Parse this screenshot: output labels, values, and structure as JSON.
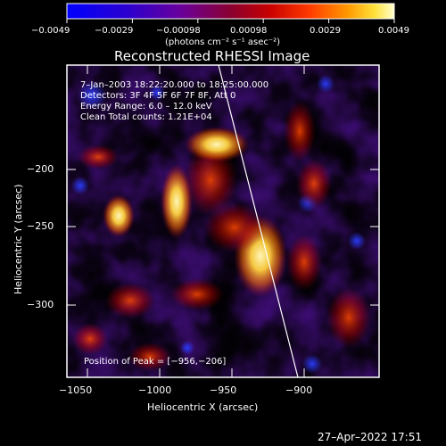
{
  "colorbar": {
    "ticks": [
      "−0.0049",
      "−0.0029",
      "−0.00098",
      "0.00098",
      "0.0029",
      "0.0049"
    ],
    "units": "(photons cm⁻² s⁻¹ asec⁻²)"
  },
  "header": {
    "title": "Reconstructed RHESSI Image"
  },
  "axes": {
    "x_label": "Heliocentric X (arcsec)",
    "y_label": "Heliocentric Y (arcsec)",
    "x_ticks": [
      "−1050",
      "−1000",
      "−950",
      "−900"
    ],
    "y_ticks": [
      "−200",
      "−250",
      "−300"
    ]
  },
  "image_info": {
    "time_range": "7–Jan–2003 18:22:20.000 to 18:25:00.000",
    "detectors": "Detectors: 3F 4F 5F 6F 7F 8F, Att 0",
    "energy_range": "Energy Range: 6.0 – 12.0 keV",
    "clean_counts": "Clean    Total counts: 1.21E+04",
    "peak_position": "Position of Peak = [−956,−206]"
  },
  "footer": {
    "timestamp": "27–Apr–2022 17:51"
  }
}
